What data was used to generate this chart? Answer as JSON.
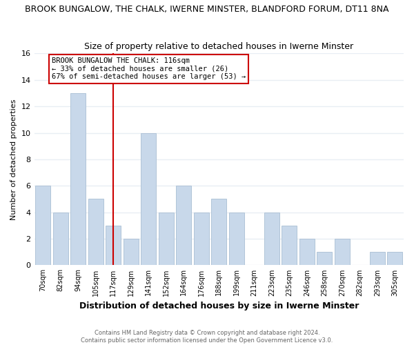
{
  "title": "BROOK BUNGALOW, THE CHALK, IWERNE MINSTER, BLANDFORD FORUM, DT11 8NA",
  "subtitle": "Size of property relative to detached houses in Iwerne Minster",
  "xlabel": "Distribution of detached houses by size in Iwerne Minster",
  "ylabel": "Number of detached properties",
  "bin_labels": [
    "70sqm",
    "82sqm",
    "94sqm",
    "105sqm",
    "117sqm",
    "129sqm",
    "141sqm",
    "152sqm",
    "164sqm",
    "176sqm",
    "188sqm",
    "199sqm",
    "211sqm",
    "223sqm",
    "235sqm",
    "246sqm",
    "258sqm",
    "270sqm",
    "282sqm",
    "293sqm",
    "305sqm"
  ],
  "counts": [
    6,
    4,
    13,
    5,
    3,
    2,
    10,
    4,
    6,
    4,
    5,
    4,
    0,
    4,
    3,
    2,
    1,
    2,
    0,
    1,
    1
  ],
  "bar_color": "#c8d8ea",
  "bar_edge_color": "#b0c4d8",
  "vline_index": 4,
  "vline_color": "#cc0000",
  "annotation_text": "BROOK BUNGALOW THE CHALK: 116sqm\n← 33% of detached houses are smaller (26)\n67% of semi-detached houses are larger (53) →",
  "annotation_box_color": "white",
  "annotation_box_edgecolor": "#cc0000",
  "ylim": [
    0,
    16
  ],
  "yticks": [
    0,
    2,
    4,
    6,
    8,
    10,
    12,
    14,
    16
  ],
  "footer_line1": "Contains HM Land Registry data © Crown copyright and database right 2024.",
  "footer_line2": "Contains public sector information licensed under the Open Government Licence v3.0.",
  "background_color": "#ffffff",
  "grid_color": "#e8eef4",
  "title_fontsize": 9,
  "subtitle_fontsize": 9
}
